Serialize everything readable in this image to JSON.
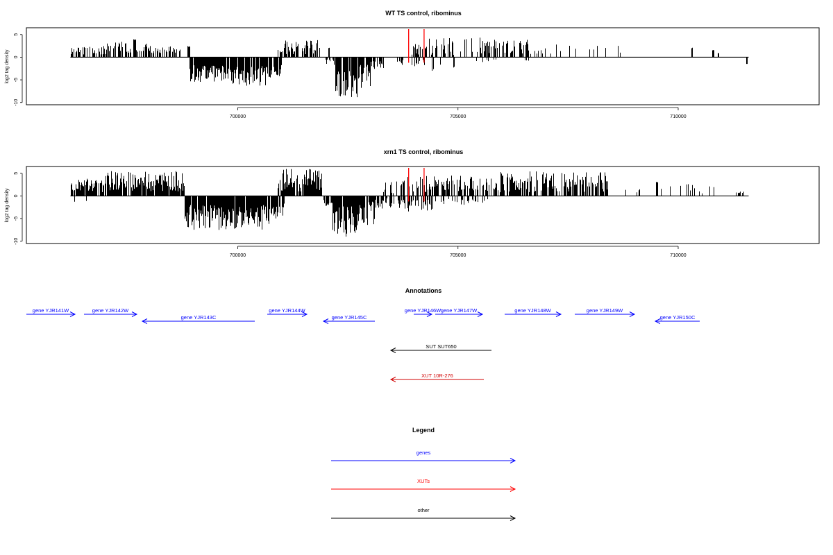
{
  "chart_data": [
    {
      "type": "bar",
      "title": "WT TS control, ribominus",
      "ylabel": "log2 tag density",
      "xlim": [
        695200,
        713200
      ],
      "ylim": [
        -10.5,
        6.5
      ],
      "x_ticks": [
        700000,
        705000,
        710000
      ],
      "x_tick_labels": [
        "700000",
        "705000",
        "710000"
      ],
      "y_ticks": [
        -10,
        -5,
        0,
        5
      ],
      "y_tick_labels": [
        "-10",
        "-5",
        "0",
        "5"
      ],
      "markers": [
        703880,
        704230
      ],
      "marker_color": "#ff0000",
      "segments": [
        {
          "range": [
            696200,
            697000
          ],
          "sign": 1,
          "density": 0.55,
          "min": 0.5,
          "max": 2.5,
          "seed": 11
        },
        {
          "range": [
            697000,
            698000
          ],
          "sign": 1,
          "density": 0.6,
          "min": 0.8,
          "max": 3.5,
          "seed": 12
        },
        {
          "range": [
            698000,
            698700
          ],
          "sign": 1,
          "density": 0.55,
          "min": 0.8,
          "max": 2.5,
          "seed": 13
        },
        {
          "range": [
            697620,
            697680
          ],
          "sign": 1,
          "density": 1,
          "min": 3.8,
          "max": 4.0,
          "seed": 14
        },
        {
          "range": [
            698850,
            698900
          ],
          "sign": 1,
          "density": 1,
          "min": 2.3,
          "max": 2.6,
          "seed": 15
        },
        {
          "range": [
            698900,
            699700
          ],
          "sign": -1,
          "density": 0.9,
          "min": 1.5,
          "max": 5.5,
          "seed": 16
        },
        {
          "range": [
            699700,
            700700
          ],
          "sign": -1,
          "density": 0.9,
          "min": 2.0,
          "max": 6.4,
          "seed": 17
        },
        {
          "range": [
            700700,
            700990
          ],
          "sign": -1,
          "density": 0.9,
          "min": 1.5,
          "max": 4.8,
          "seed": 18
        },
        {
          "range": [
            700900,
            701050
          ],
          "sign": 1,
          "density": 0.7,
          "min": 0.8,
          "max": 2.0,
          "seed": 19
        },
        {
          "range": [
            701050,
            701850
          ],
          "sign": 1,
          "density": 0.65,
          "min": 0.6,
          "max": 3.8,
          "seed": 20
        },
        {
          "range": [
            702050,
            702080
          ],
          "sign": 1,
          "density": 1,
          "min": 2.0,
          "max": 2.1,
          "seed": 21
        },
        {
          "range": [
            702000,
            702200
          ],
          "sign": -1,
          "density": 0.6,
          "min": 0.5,
          "max": 2.0,
          "seed": 22
        },
        {
          "range": [
            702200,
            702700
          ],
          "sign": -1,
          "density": 0.9,
          "min": 3.0,
          "max": 9.5,
          "seed": 23
        },
        {
          "range": [
            702700,
            703000
          ],
          "sign": -1,
          "density": 0.8,
          "min": 1.5,
          "max": 7.0,
          "seed": 24
        },
        {
          "range": [
            703000,
            703300
          ],
          "sign": -1,
          "density": 0.6,
          "min": 0.8,
          "max": 2.6,
          "seed": 25
        },
        {
          "range": [
            703600,
            703800
          ],
          "sign": -1,
          "density": 0.25,
          "min": 0.5,
          "max": 2.0,
          "seed": 26
        },
        {
          "range": [
            703950,
            704300
          ],
          "sign": 1,
          "density": 0.5,
          "min": 0.5,
          "max": 3.0,
          "seed": 27
        },
        {
          "range": [
            703950,
            704250
          ],
          "sign": -1,
          "density": 0.3,
          "min": 0.5,
          "max": 2.0,
          "seed": 28
        },
        {
          "range": [
            704300,
            705500
          ],
          "sign": 1,
          "density": 0.35,
          "min": 0.5,
          "max": 4.5,
          "seed": 29
        },
        {
          "range": [
            704300,
            705000
          ],
          "sign": -1,
          "density": 0.15,
          "min": 0.5,
          "max": 3.0,
          "seed": 30
        },
        {
          "range": [
            705500,
            706600
          ],
          "sign": 1,
          "density": 0.6,
          "min": 0.8,
          "max": 4.0,
          "seed": 31
        },
        {
          "range": [
            705400,
            706600
          ],
          "sign": -1,
          "density": 0.08,
          "min": 0.3,
          "max": 1.2,
          "seed": 32
        },
        {
          "range": [
            706600,
            707200
          ],
          "sign": 1,
          "density": 0.25,
          "min": 0.5,
          "max": 2.0,
          "seed": 33
        },
        {
          "range": [
            707200,
            708700
          ],
          "sign": 1,
          "density": 0.05,
          "min": 1.0,
          "max": 2.8,
          "seed": 34
        },
        {
          "range": [
            710300,
            710320
          ],
          "sign": 1,
          "density": 1,
          "min": 1.9,
          "max": 2.1,
          "seed": 35
        },
        {
          "range": [
            710780,
            710800
          ],
          "sign": 1,
          "density": 1,
          "min": 1.5,
          "max": 1.6,
          "seed": 36
        },
        {
          "range": [
            710900,
            710920
          ],
          "sign": 1,
          "density": 1,
          "min": 0.8,
          "max": 0.9,
          "seed": 37
        },
        {
          "range": [
            711540,
            711560
          ],
          "sign": -1,
          "density": 1,
          "min": 1.4,
          "max": 1.5,
          "seed": 38
        }
      ]
    },
    {
      "type": "bar",
      "title": "xrn1 TS control, ribominus",
      "ylabel": "log2 tag density",
      "xlim": [
        695200,
        713200
      ],
      "ylim": [
        -10.5,
        6.5
      ],
      "x_ticks": [
        700000,
        705000,
        710000
      ],
      "x_tick_labels": [
        "700000",
        "705000",
        "710000"
      ],
      "y_ticks": [
        -10,
        -5,
        0,
        5
      ],
      "y_tick_labels": [
        "-10",
        "-5",
        "0",
        "5"
      ],
      "markers": [
        703880,
        704230
      ],
      "marker_color": "#ff0000",
      "segments": [
        {
          "range": [
            696200,
            697000
          ],
          "sign": 1,
          "density": 0.8,
          "min": 0.8,
          "max": 3.8,
          "seed": 41
        },
        {
          "range": [
            696200,
            696600
          ],
          "sign": -1,
          "density": 0.1,
          "min": 0.5,
          "max": 1.6,
          "seed": 42
        },
        {
          "range": [
            697000,
            698800
          ],
          "sign": 1,
          "density": 0.85,
          "min": 1.0,
          "max": 5.5,
          "seed": 43
        },
        {
          "range": [
            698800,
            700700
          ],
          "sign": -1,
          "density": 0.95,
          "min": 2.0,
          "max": 7.5,
          "seed": 44
        },
        {
          "range": [
            700700,
            701050
          ],
          "sign": -1,
          "density": 0.9,
          "min": 1.5,
          "max": 5.0,
          "seed": 45
        },
        {
          "range": [
            700900,
            701900
          ],
          "sign": 1,
          "density": 0.85,
          "min": 1.0,
          "max": 6.0,
          "seed": 46
        },
        {
          "range": [
            701900,
            702150
          ],
          "sign": -1,
          "density": 0.7,
          "min": 0.8,
          "max": 3.0,
          "seed": 47
        },
        {
          "range": [
            702150,
            702750
          ],
          "sign": -1,
          "density": 0.95,
          "min": 2.0,
          "max": 9.5,
          "seed": 48
        },
        {
          "range": [
            702750,
            703100
          ],
          "sign": -1,
          "density": 0.85,
          "min": 1.0,
          "max": 6.5,
          "seed": 49
        },
        {
          "range": [
            703100,
            703800
          ],
          "sign": -1,
          "density": 0.55,
          "min": 0.5,
          "max": 3.0,
          "seed": 50
        },
        {
          "range": [
            703300,
            703800
          ],
          "sign": 1,
          "density": 0.4,
          "min": 0.5,
          "max": 3.5,
          "seed": 51
        },
        {
          "range": [
            703850,
            704400
          ],
          "sign": 1,
          "density": 0.6,
          "min": 0.8,
          "max": 4.5,
          "seed": 52
        },
        {
          "range": [
            703850,
            704500
          ],
          "sign": -1,
          "density": 0.55,
          "min": 0.8,
          "max": 3.5,
          "seed": 53
        },
        {
          "range": [
            704400,
            705900
          ],
          "sign": 1,
          "density": 0.6,
          "min": 0.8,
          "max": 4.5,
          "seed": 54
        },
        {
          "range": [
            704500,
            705700
          ],
          "sign": -1,
          "density": 0.25,
          "min": 0.5,
          "max": 2.0,
          "seed": 55
        },
        {
          "range": [
            705900,
            708400
          ],
          "sign": 1,
          "density": 0.75,
          "min": 0.8,
          "max": 5.5,
          "seed": 56
        },
        {
          "range": [
            708400,
            709200
          ],
          "sign": 1,
          "density": 0.15,
          "min": 0.3,
          "max": 1.5,
          "seed": 57
        },
        {
          "range": [
            709500,
            709520
          ],
          "sign": 1,
          "density": 1,
          "min": 3.0,
          "max": 3.1,
          "seed": 58
        },
        {
          "range": [
            709600,
            710900
          ],
          "sign": 1,
          "density": 0.15,
          "min": 0.4,
          "max": 2.8,
          "seed": 59
        },
        {
          "range": [
            711300,
            711500
          ],
          "sign": 1,
          "density": 0.3,
          "min": 0.3,
          "max": 1.0,
          "seed": 60
        }
      ]
    }
  ],
  "annotations": {
    "title": "Annotations",
    "genes": [
      {
        "label": "gene YJR141W",
        "dir": "+",
        "x1": 38,
        "x2": 108,
        "row": 0
      },
      {
        "label": "gene YJR142W",
        "dir": "+",
        "x1": 121,
        "x2": 197,
        "row": 0
      },
      {
        "label": "gene YJR143C",
        "dir": "-",
        "x1": 205,
        "x2": 367,
        "row": 1
      },
      {
        "label": "gene YJR144W",
        "dir": "+",
        "x1": 385,
        "x2": 442,
        "row": 0
      },
      {
        "label": "gene YJR145C",
        "dir": "-",
        "x1": 466,
        "x2": 540,
        "row": 1
      },
      {
        "label": "gene YJR146W",
        "dir": "+",
        "x1": 596,
        "x2": 622,
        "row": 0
      },
      {
        "label": "gene YJR147W",
        "dir": "+",
        "x1": 627,
        "x2": 695,
        "row": 0
      },
      {
        "label": "gene YJR148W",
        "dir": "+",
        "x1": 727,
        "x2": 808,
        "row": 0
      },
      {
        "label": "gene YJR149W",
        "dir": "+",
        "x1": 828,
        "x2": 914,
        "row": 0
      },
      {
        "label": "gene YJR150C",
        "dir": "-",
        "x1": 944,
        "x2": 1008,
        "row": 1
      }
    ],
    "others": [
      {
        "label": "SUT SUT650",
        "dir": "-",
        "x1": 563,
        "x2": 708,
        "y": 505,
        "color": "#000000"
      },
      {
        "label": "XUT 10R-276",
        "dir": "-",
        "x1": 563,
        "x2": 697,
        "y": 547,
        "color": "#d00000"
      }
    ]
  },
  "legend": {
    "title": "Legend",
    "items": [
      {
        "label": "genes",
        "color": "#0000ff"
      },
      {
        "label": "XUTs",
        "color": "#ff0000"
      },
      {
        "label": "other",
        "color": "#000000"
      }
    ]
  },
  "colors": {
    "gene": "#0000ff",
    "xut": "#d00000",
    "other": "#000000",
    "bars": "#000000"
  }
}
